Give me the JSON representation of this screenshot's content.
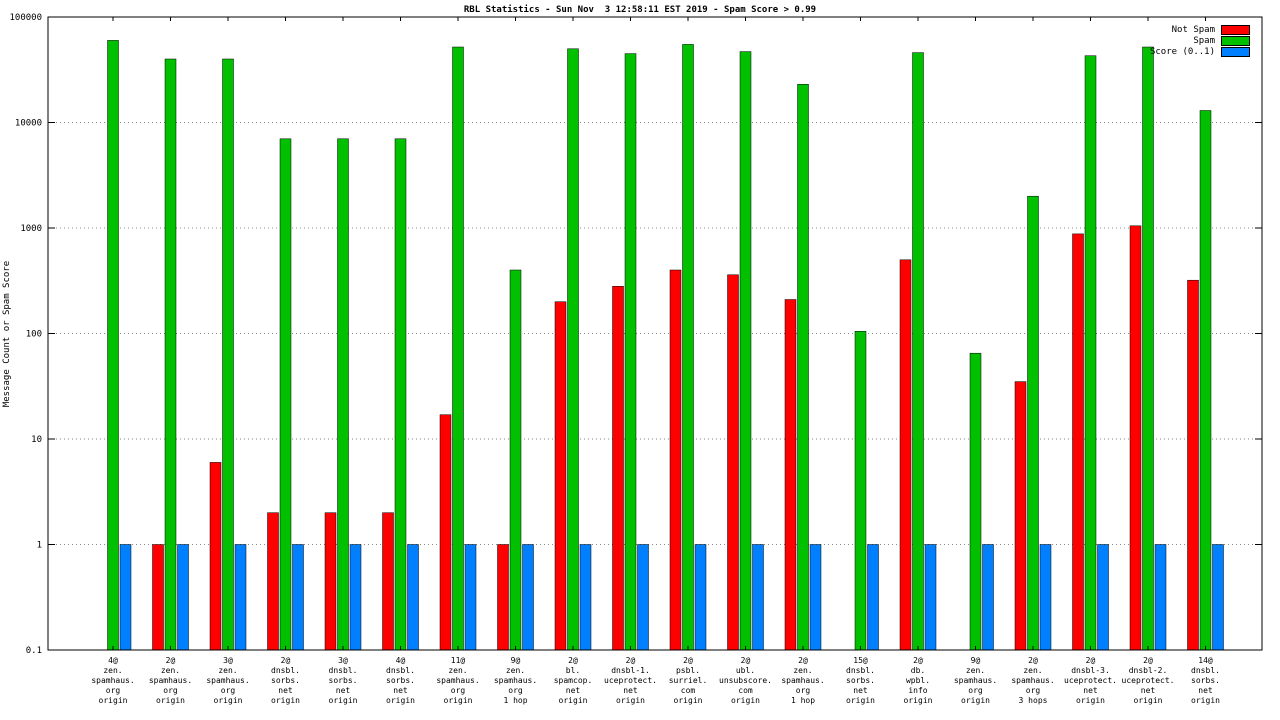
{
  "chart_data": {
    "type": "bar",
    "title": "RBL Statistics - Sun Nov  3 12:58:11 EST 2019 - Spam Score > 0.99",
    "xlabel": "",
    "ylabel": "Message Count or Spam Score",
    "yscale": "log",
    "ylim": [
      0.1,
      100000
    ],
    "ytick_values": [
      0.1,
      1,
      10,
      100,
      1000,
      10000,
      100000
    ],
    "ytick_labels": [
      "0.1",
      "1",
      "10",
      "100",
      "1000",
      "10000",
      "100000"
    ],
    "grid": true,
    "legend_position": "top-right",
    "categories": [
      [
        "4@",
        "zen.",
        "spamhaus.",
        "org",
        "origin"
      ],
      [
        "2@",
        "zen.",
        "spamhaus.",
        "org",
        "origin"
      ],
      [
        "3@",
        "zen.",
        "spamhaus.",
        "org",
        "origin"
      ],
      [
        "2@",
        "dnsbl.",
        "sorbs.",
        "net",
        "origin"
      ],
      [
        "3@",
        "dnsbl.",
        "sorbs.",
        "net",
        "origin"
      ],
      [
        "4@",
        "dnsbl.",
        "sorbs.",
        "net",
        "origin"
      ],
      [
        "11@",
        "zen.",
        "spamhaus.",
        "org",
        "origin"
      ],
      [
        "9@",
        "zen.",
        "spamhaus.",
        "org",
        "1 hop"
      ],
      [
        "2@",
        "bl.",
        "spamcop.",
        "net",
        "origin"
      ],
      [
        "2@",
        "dnsbl-1.",
        "uceprotect.",
        "net",
        "origin"
      ],
      [
        "2@",
        "psbl.",
        "surriel.",
        "com",
        "origin"
      ],
      [
        "2@",
        "ubl.",
        "unsubscore.",
        "com",
        "origin"
      ],
      [
        "2@",
        "zen.",
        "spamhaus.",
        "org",
        "1 hop"
      ],
      [
        "15@",
        "dnsbl.",
        "sorbs.",
        "net",
        "origin"
      ],
      [
        "2@",
        "db.",
        "wpbl.",
        "info",
        "origin"
      ],
      [
        "9@",
        "zen.",
        "spamhaus.",
        "org",
        "origin"
      ],
      [
        "2@",
        "zen.",
        "spamhaus.",
        "org",
        "3 hops"
      ],
      [
        "2@",
        "dnsbl-3.",
        "uceprotect.",
        "net",
        "origin"
      ],
      [
        "2@",
        "dnsbl-2.",
        "uceprotect.",
        "net",
        "origin"
      ],
      [
        "14@",
        "dnsbl.",
        "sorbs.",
        "net",
        "origin"
      ]
    ],
    "series": [
      {
        "name": "Not Spam",
        "color": "#ff0000",
        "values": [
          0,
          1,
          6,
          2,
          2,
          2,
          17,
          1,
          200,
          280,
          400,
          360,
          210,
          0,
          500,
          0,
          35,
          880,
          1050,
          320
        ]
      },
      {
        "name": "Spam",
        "color": "#00c000",
        "values": [
          60000,
          40000,
          40000,
          7000,
          7000,
          7000,
          52000,
          400,
          50000,
          45000,
          55000,
          47000,
          23000,
          105,
          46000,
          65,
          2000,
          43000,
          52000,
          13000
        ]
      },
      {
        "name": "Score (0..1)",
        "color": "#0080ff",
        "values": [
          1,
          1,
          1,
          1,
          1,
          1,
          1,
          1,
          1,
          1,
          1,
          1,
          1,
          1,
          1,
          1,
          1,
          1,
          1,
          1
        ]
      }
    ]
  }
}
